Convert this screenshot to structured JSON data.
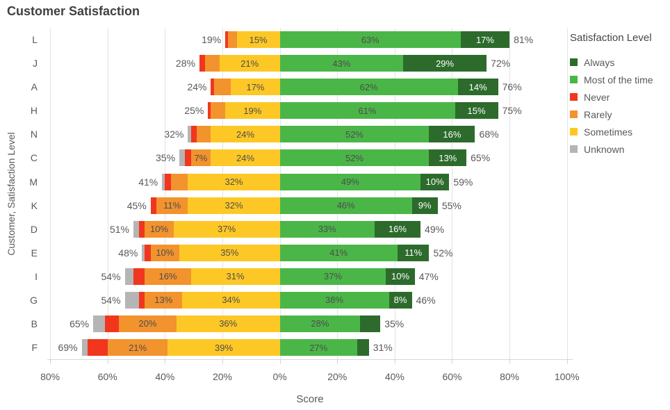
{
  "chart_data": {
    "type": "diverging_stacked_bar",
    "title": "Customer Satisfaction",
    "xlabel": "Score",
    "ylabel": "Customer, Satisfaction Level",
    "axis": {
      "domain_min": -81,
      "domain_max": 102,
      "grid": true,
      "ticks": [
        {
          "v": -80,
          "label": "80%"
        },
        {
          "v": -60,
          "label": "60%"
        },
        {
          "v": -40,
          "label": "40%"
        },
        {
          "v": -20,
          "label": "20%"
        },
        {
          "v": 0,
          "label": "0%"
        },
        {
          "v": 20,
          "label": "20%"
        },
        {
          "v": 40,
          "label": "40%"
        },
        {
          "v": 60,
          "label": "60%"
        },
        {
          "v": 80,
          "label": "80%"
        },
        {
          "v": 100,
          "label": "100%"
        }
      ]
    },
    "colors": {
      "always": "#2C6B2C",
      "most": "#4BB648",
      "never": "#F1361D",
      "rarely": "#F2932E",
      "sometimes": "#FDC826",
      "unknown": "#B5B5B5"
    },
    "label_colors": {
      "on_dark": "#FFFFFF",
      "on_light": "#4D4D4D",
      "outside": "#595959"
    },
    "legend": {
      "title": "Satisfaction Level",
      "position": "right",
      "items": [
        {
          "key": "always",
          "label": "Always"
        },
        {
          "key": "most",
          "label": "Most of the time"
        },
        {
          "key": "never",
          "label": "Never"
        },
        {
          "key": "rarely",
          "label": "Rarely"
        },
        {
          "key": "sometimes",
          "label": "Sometimes"
        },
        {
          "key": "unknown",
          "label": "Unknown"
        }
      ]
    },
    "rows": [
      {
        "customer": "L",
        "left_total": "19%",
        "right_total": "81%",
        "segments": [
          {
            "key": "unknown",
            "value": 0,
            "label": ""
          },
          {
            "key": "never",
            "value": 1,
            "label": ""
          },
          {
            "key": "rarely",
            "value": 3,
            "label": ""
          },
          {
            "key": "sometimes",
            "value": 15,
            "label": "15%"
          },
          {
            "key": "most",
            "value": 63,
            "label": "63%"
          },
          {
            "key": "always",
            "value": 17,
            "label": "17%"
          }
        ]
      },
      {
        "customer": "J",
        "left_total": "28%",
        "right_total": "72%",
        "segments": [
          {
            "key": "unknown",
            "value": 0,
            "label": ""
          },
          {
            "key": "never",
            "value": 2,
            "label": ""
          },
          {
            "key": "rarely",
            "value": 5,
            "label": ""
          },
          {
            "key": "sometimes",
            "value": 21,
            "label": "21%"
          },
          {
            "key": "most",
            "value": 43,
            "label": "43%"
          },
          {
            "key": "always",
            "value": 29,
            "label": "29%"
          }
        ]
      },
      {
        "customer": "A",
        "left_total": "24%",
        "right_total": "76%",
        "segments": [
          {
            "key": "unknown",
            "value": 0,
            "label": ""
          },
          {
            "key": "never",
            "value": 1,
            "label": ""
          },
          {
            "key": "rarely",
            "value": 6,
            "label": ""
          },
          {
            "key": "sometimes",
            "value": 17,
            "label": "17%"
          },
          {
            "key": "most",
            "value": 62,
            "label": "62%"
          },
          {
            "key": "always",
            "value": 14,
            "label": "14%"
          }
        ]
      },
      {
        "customer": "H",
        "left_total": "25%",
        "right_total": "75%",
        "segments": [
          {
            "key": "unknown",
            "value": 0,
            "label": ""
          },
          {
            "key": "never",
            "value": 1,
            "label": ""
          },
          {
            "key": "rarely",
            "value": 5,
            "label": ""
          },
          {
            "key": "sometimes",
            "value": 19,
            "label": "19%"
          },
          {
            "key": "most",
            "value": 61,
            "label": "61%"
          },
          {
            "key": "always",
            "value": 15,
            "label": "15%"
          }
        ]
      },
      {
        "customer": "N",
        "left_total": "32%",
        "right_total": "68%",
        "segments": [
          {
            "key": "unknown",
            "value": 1,
            "label": ""
          },
          {
            "key": "never",
            "value": 2,
            "label": ""
          },
          {
            "key": "rarely",
            "value": 5,
            "label": ""
          },
          {
            "key": "sometimes",
            "value": 24,
            "label": "24%"
          },
          {
            "key": "most",
            "value": 52,
            "label": "52%"
          },
          {
            "key": "always",
            "value": 16,
            "label": "16%"
          }
        ]
      },
      {
        "customer": "C",
        "left_total": "35%",
        "right_total": "65%",
        "segments": [
          {
            "key": "unknown",
            "value": 2,
            "label": ""
          },
          {
            "key": "never",
            "value": 2,
            "label": ""
          },
          {
            "key": "rarely",
            "value": 7,
            "label": "7%"
          },
          {
            "key": "sometimes",
            "value": 24,
            "label": "24%"
          },
          {
            "key": "most",
            "value": 52,
            "label": "52%"
          },
          {
            "key": "always",
            "value": 13,
            "label": "13%"
          }
        ]
      },
      {
        "customer": "M",
        "left_total": "41%",
        "right_total": "59%",
        "segments": [
          {
            "key": "unknown",
            "value": 1,
            "label": ""
          },
          {
            "key": "never",
            "value": 2,
            "label": ""
          },
          {
            "key": "rarely",
            "value": 6,
            "label": ""
          },
          {
            "key": "sometimes",
            "value": 32,
            "label": "32%"
          },
          {
            "key": "most",
            "value": 49,
            "label": "49%"
          },
          {
            "key": "always",
            "value": 10,
            "label": "10%"
          }
        ]
      },
      {
        "customer": "K",
        "left_total": "45%",
        "right_total": "55%",
        "segments": [
          {
            "key": "unknown",
            "value": 0,
            "label": ""
          },
          {
            "key": "never",
            "value": 2,
            "label": ""
          },
          {
            "key": "rarely",
            "value": 11,
            "label": "11%"
          },
          {
            "key": "sometimes",
            "value": 32,
            "label": "32%"
          },
          {
            "key": "most",
            "value": 46,
            "label": "46%"
          },
          {
            "key": "always",
            "value": 9,
            "label": "9%"
          }
        ]
      },
      {
        "customer": "D",
        "left_total": "51%",
        "right_total": "49%",
        "segments": [
          {
            "key": "unknown",
            "value": 2,
            "label": ""
          },
          {
            "key": "never",
            "value": 2,
            "label": ""
          },
          {
            "key": "rarely",
            "value": 10,
            "label": "10%"
          },
          {
            "key": "sometimes",
            "value": 37,
            "label": "37%"
          },
          {
            "key": "most",
            "value": 33,
            "label": "33%"
          },
          {
            "key": "always",
            "value": 16,
            "label": "16%"
          }
        ]
      },
      {
        "customer": "E",
        "left_total": "48%",
        "right_total": "52%",
        "segments": [
          {
            "key": "unknown",
            "value": 1,
            "label": ""
          },
          {
            "key": "never",
            "value": 2,
            "label": ""
          },
          {
            "key": "rarely",
            "value": 10,
            "label": "10%"
          },
          {
            "key": "sometimes",
            "value": 35,
            "label": "35%"
          },
          {
            "key": "most",
            "value": 41,
            "label": "41%"
          },
          {
            "key": "always",
            "value": 11,
            "label": "11%"
          }
        ]
      },
      {
        "customer": "I",
        "left_total": "54%",
        "right_total": "47%",
        "segments": [
          {
            "key": "unknown",
            "value": 3,
            "label": ""
          },
          {
            "key": "never",
            "value": 4,
            "label": ""
          },
          {
            "key": "rarely",
            "value": 16,
            "label": "16%"
          },
          {
            "key": "sometimes",
            "value": 31,
            "label": "31%"
          },
          {
            "key": "most",
            "value": 37,
            "label": "37%"
          },
          {
            "key": "always",
            "value": 10,
            "label": "10%"
          }
        ]
      },
      {
        "customer": "G",
        "left_total": "54%",
        "right_total": "46%",
        "segments": [
          {
            "key": "unknown",
            "value": 5,
            "label": ""
          },
          {
            "key": "never",
            "value": 2,
            "label": ""
          },
          {
            "key": "rarely",
            "value": 13,
            "label": "13%"
          },
          {
            "key": "sometimes",
            "value": 34,
            "label": "34%"
          },
          {
            "key": "most",
            "value": 38,
            "label": "38%"
          },
          {
            "key": "always",
            "value": 8,
            "label": "8%"
          }
        ]
      },
      {
        "customer": "B",
        "left_total": "65%",
        "right_total": "35%",
        "segments": [
          {
            "key": "unknown",
            "value": 4,
            "label": ""
          },
          {
            "key": "never",
            "value": 5,
            "label": ""
          },
          {
            "key": "rarely",
            "value": 20,
            "label": "20%"
          },
          {
            "key": "sometimes",
            "value": 36,
            "label": "36%"
          },
          {
            "key": "most",
            "value": 28,
            "label": "28%"
          },
          {
            "key": "always",
            "value": 7,
            "label": ""
          }
        ]
      },
      {
        "customer": "F",
        "left_total": "69%",
        "right_total": "31%",
        "segments": [
          {
            "key": "unknown",
            "value": 2,
            "label": ""
          },
          {
            "key": "never",
            "value": 7,
            "label": ""
          },
          {
            "key": "rarely",
            "value": 21,
            "label": "21%"
          },
          {
            "key": "sometimes",
            "value": 39,
            "label": "39%"
          },
          {
            "key": "most",
            "value": 27,
            "label": "27%"
          },
          {
            "key": "always",
            "value": 4,
            "label": ""
          }
        ]
      }
    ]
  }
}
